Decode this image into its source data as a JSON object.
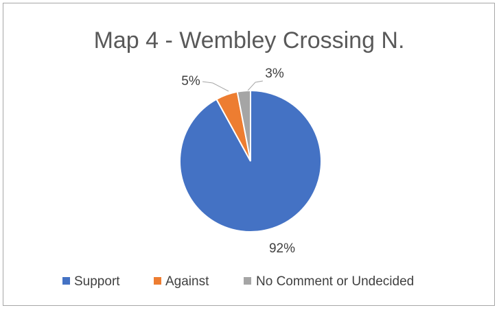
{
  "chart_data": {
    "type": "pie",
    "title": "Map 4 - Wembley Crossing N.",
    "categories": [
      "Support",
      "Against",
      "No Comment or Undecided"
    ],
    "values": [
      92,
      5,
      3
    ],
    "data_labels": [
      "92%",
      "5%",
      "3%"
    ],
    "colors": [
      "#4472c4",
      "#ed7d31",
      "#a5a5a5"
    ],
    "legend_position": "bottom",
    "grid": false
  }
}
